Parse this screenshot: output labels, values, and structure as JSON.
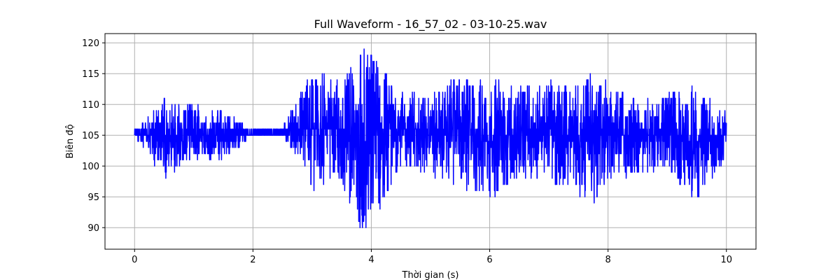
{
  "chart_data": {
    "type": "line",
    "title": "Full Waveform - 16_57_02 - 03-10-25.wav",
    "xlabel": "Thời gian (s)",
    "ylabel": "Biên độ",
    "xlim": [
      -0.5,
      10.5
    ],
    "ylim": [
      86.5,
      121.5
    ],
    "xticks": [
      0,
      2,
      4,
      6,
      8,
      10
    ],
    "yticks": [
      90,
      95,
      100,
      105,
      110,
      115,
      120
    ],
    "grid": true,
    "color": "#0000ff",
    "series": [
      {
        "x": [
          0.0,
          0.5,
          1.0,
          1.5,
          2.0,
          2.5,
          3.0,
          3.5,
          3.9,
          4.5,
          5.0,
          5.5,
          6.0,
          6.5,
          7.0,
          7.5,
          7.75,
          8.0,
          8.5,
          9.0,
          9.5,
          10.0
        ],
        "min": [
          105,
          98,
          101,
          101,
          105,
          105,
          96,
          97,
          88,
          100,
          98,
          97,
          94,
          98,
          97,
          95,
          93,
          97,
          99,
          99,
          94,
          101
        ],
        "max": [
          106,
          111,
          110,
          109,
          106,
          106,
          116,
          114,
          120,
          113,
          112,
          115,
          114,
          113,
          114,
          113,
          116,
          114,
          111,
          112,
          113,
          110
        ]
      }
    ]
  }
}
